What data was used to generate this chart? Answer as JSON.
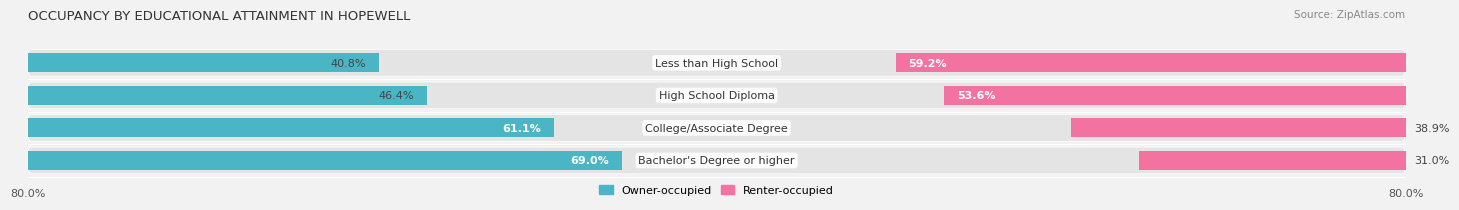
{
  "title": "OCCUPANCY BY EDUCATIONAL ATTAINMENT IN HOPEWELL",
  "source": "Source: ZipAtlas.com",
  "categories": [
    "Less than High School",
    "High School Diploma",
    "College/Associate Degree",
    "Bachelor's Degree or higher"
  ],
  "owner_values": [
    40.8,
    46.4,
    61.1,
    69.0
  ],
  "renter_values": [
    59.2,
    53.6,
    38.9,
    31.0
  ],
  "owner_color": "#4ab5c4",
  "renter_color": "#f272a0",
  "background_color": "#f2f2f2",
  "bar_bg_color": "#e4e4e4",
  "title_fontsize": 9.5,
  "label_fontsize": 8,
  "tick_fontsize": 8,
  "source_fontsize": 7.5
}
